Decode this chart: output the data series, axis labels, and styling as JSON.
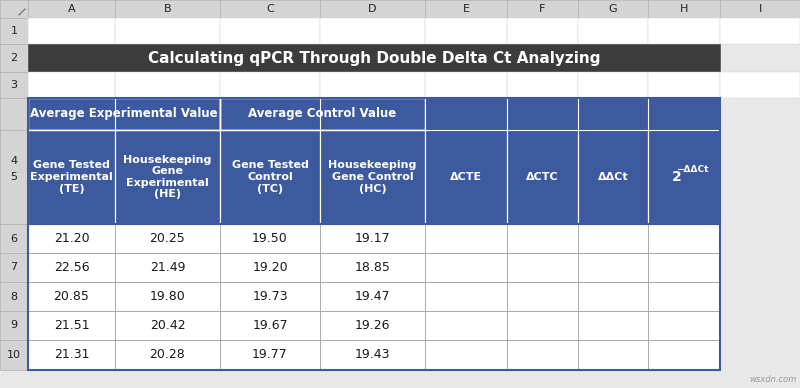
{
  "title": "Calculating qPCR Through Double Delta Ct Analyzing",
  "title_bg": "#3c3c3c",
  "title_color": "#ffffff",
  "header_bg": "#3d5a9e",
  "header_color": "#ffffff",
  "data_bg": "#ffffff",
  "data_color": "#1a1a1a",
  "border_color": "#3d5a9e",
  "data_border": "#999999",
  "outer_bg": "#e8e8e8",
  "row_header_bg": "#e8e8e8",
  "row_header_color": "#333333",
  "span_header1": "Average Experimental Value",
  "span_header2": "Average Control Value",
  "col_letters": [
    "A",
    "B",
    "C",
    "D",
    "E",
    "F",
    "G",
    "H",
    "I"
  ],
  "row_numbers": [
    "1",
    "2",
    "3",
    "4",
    "5",
    "6",
    "7",
    "8",
    "9",
    "10"
  ],
  "col_headers_b": "Gene Tested\nExperimental\n(TE)",
  "col_headers_c": "Housekeeping\nGene\nExperimental\n(HE)",
  "col_headers_d": "Gene Tested\nControl\n(TC)",
  "col_headers_e": "Housekeeping\nGene Control\n(HC)",
  "col_headers_f": "ΔCTE",
  "col_headers_g": "ΔCTC",
  "col_headers_h": "ΔΔCt",
  "col_headers_i": "2",
  "col_headers_i_sup": "−ΔΔCt",
  "data_rows": [
    [
      "21.20",
      "20.25",
      "19.50",
      "19.17",
      "",
      "",
      "",
      ""
    ],
    [
      "22.56",
      "21.49",
      "19.20",
      "18.85",
      "",
      "",
      "",
      ""
    ],
    [
      "20.85",
      "19.80",
      "19.73",
      "19.47",
      "",
      "",
      "",
      ""
    ],
    [
      "21.51",
      "20.42",
      "19.67",
      "19.26",
      "",
      "",
      "",
      ""
    ],
    [
      "21.31",
      "20.28",
      "19.77",
      "19.43",
      "",
      "",
      "",
      ""
    ]
  ],
  "watermark": "wsxdn.com",
  "col_lefts": [
    0,
    28,
    115,
    220,
    320,
    425,
    507,
    578,
    648,
    720,
    800
  ],
  "row_tops": [
    0,
    18,
    44,
    72,
    98,
    130,
    224,
    253,
    282,
    311,
    340,
    370
  ]
}
